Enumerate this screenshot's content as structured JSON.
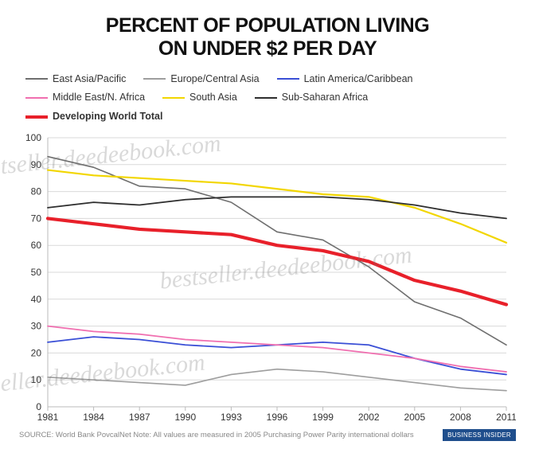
{
  "title_line1": "PERCENT OF POPULATION LIVING",
  "title_line2": "ON UNDER $2 PER DAY",
  "title_fontsize": 25,
  "title_color": "#111111",
  "background_color": "#ffffff",
  "chart": {
    "type": "line",
    "xlim": [
      1981,
      2011
    ],
    "ylim": [
      0,
      100
    ],
    "ytick_step": 10,
    "xticks": [
      1981,
      1984,
      1987,
      1990,
      1993,
      1996,
      1999,
      2002,
      2005,
      2008,
      2011
    ],
    "grid_color": "#d9d9d9",
    "axis_color": "#bbbbbb",
    "tick_fontsize": 12,
    "series": [
      {
        "name": "East Asia/Pacific",
        "color": "#6f6f6f",
        "width": 1.6,
        "points": [
          [
            1981,
            93
          ],
          [
            1984,
            89
          ],
          [
            1987,
            82
          ],
          [
            1990,
            81
          ],
          [
            1993,
            76
          ],
          [
            1996,
            65
          ],
          [
            1999,
            62
          ],
          [
            2002,
            52
          ],
          [
            2005,
            39
          ],
          [
            2008,
            33
          ],
          [
            2011,
            23
          ]
        ]
      },
      {
        "name": "Europe/Central Asia",
        "color": "#9e9e9e",
        "width": 1.6,
        "points": [
          [
            1981,
            11
          ],
          [
            1984,
            10
          ],
          [
            1987,
            9
          ],
          [
            1990,
            8
          ],
          [
            1993,
            12
          ],
          [
            1996,
            14
          ],
          [
            1999,
            13
          ],
          [
            2002,
            11
          ],
          [
            2005,
            9
          ],
          [
            2008,
            7
          ],
          [
            2011,
            6
          ]
        ]
      },
      {
        "name": "Latin America/Caribbean",
        "color": "#3a4fd6",
        "width": 1.8,
        "points": [
          [
            1981,
            24
          ],
          [
            1984,
            26
          ],
          [
            1987,
            25
          ],
          [
            1990,
            23
          ],
          [
            1993,
            22
          ],
          [
            1996,
            23
          ],
          [
            1999,
            24
          ],
          [
            2002,
            23
          ],
          [
            2005,
            18
          ],
          [
            2008,
            14
          ],
          [
            2011,
            12
          ]
        ]
      },
      {
        "name": "Middle East/N. Africa",
        "color": "#f06fb0",
        "width": 1.8,
        "points": [
          [
            1981,
            30
          ],
          [
            1984,
            28
          ],
          [
            1987,
            27
          ],
          [
            1990,
            25
          ],
          [
            1993,
            24
          ],
          [
            1996,
            23
          ],
          [
            1999,
            22
          ],
          [
            2002,
            20
          ],
          [
            2005,
            18
          ],
          [
            2008,
            15
          ],
          [
            2011,
            13
          ]
        ]
      },
      {
        "name": "South Asia",
        "color": "#f2d600",
        "width": 2.2,
        "points": [
          [
            1981,
            88
          ],
          [
            1984,
            86
          ],
          [
            1987,
            85
          ],
          [
            1990,
            84
          ],
          [
            1993,
            83
          ],
          [
            1996,
            81
          ],
          [
            1999,
            79
          ],
          [
            2002,
            78
          ],
          [
            2005,
            74
          ],
          [
            2008,
            68
          ],
          [
            2011,
            61
          ]
        ]
      },
      {
        "name": "Sub-Saharan Africa",
        "color": "#2e2e2e",
        "width": 1.8,
        "points": [
          [
            1981,
            74
          ],
          [
            1984,
            76
          ],
          [
            1987,
            75
          ],
          [
            1990,
            77
          ],
          [
            1993,
            78
          ],
          [
            1996,
            78
          ],
          [
            1999,
            78
          ],
          [
            2002,
            77
          ],
          [
            2005,
            75
          ],
          [
            2008,
            72
          ],
          [
            2011,
            70
          ]
        ]
      },
      {
        "name": "Developing World Total",
        "color": "#e8202a",
        "width": 4.2,
        "points": [
          [
            1981,
            70
          ],
          [
            1984,
            68
          ],
          [
            1987,
            66
          ],
          [
            1990,
            65
          ],
          [
            1993,
            64
          ],
          [
            1996,
            60
          ],
          [
            1999,
            58
          ],
          [
            2002,
            54
          ],
          [
            2005,
            47
          ],
          [
            2008,
            43
          ],
          [
            2011,
            38
          ]
        ]
      }
    ]
  },
  "legend_rows": [
    [
      0,
      1,
      2
    ],
    [
      3,
      4,
      5
    ],
    [
      6
    ]
  ],
  "source_text": "SOURCE: World Bank PovcalNet    Note: All values are measured in 2005 Purchasing Power Parity international dollars",
  "badge_text": "BUSINESS INSIDER",
  "watermark_text": "bestseller.deedeebook.com"
}
